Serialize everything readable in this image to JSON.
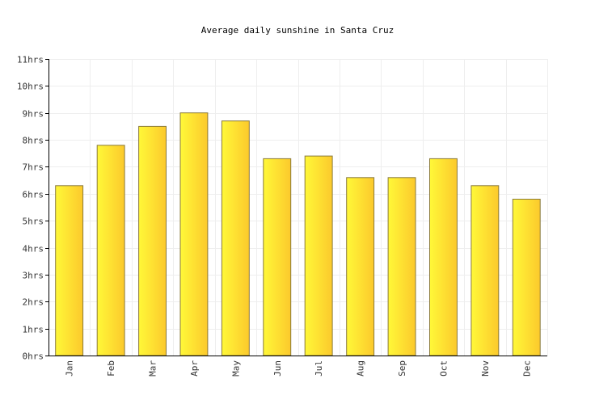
{
  "chart_data": {
    "type": "bar",
    "title": "Average daily sunshine in Santa Cruz",
    "xlabel": "",
    "ylabel": "",
    "categories": [
      "Jan",
      "Feb",
      "Mar",
      "Apr",
      "May",
      "Jun",
      "Jul",
      "Aug",
      "Sep",
      "Oct",
      "Nov",
      "Dec"
    ],
    "values": [
      6.3,
      7.8,
      8.5,
      9.0,
      8.7,
      7.3,
      7.4,
      6.6,
      6.6,
      7.3,
      6.3,
      5.8
    ],
    "ylim": [
      0,
      11
    ],
    "yticks": [
      "0hrs",
      "1hrs",
      "2hrs",
      "3hrs",
      "4hrs",
      "5hrs",
      "6hrs",
      "7hrs",
      "8hrs",
      "9hrs",
      "10hrs",
      "11hrs"
    ],
    "grid": true,
    "legend": "none",
    "colors": {
      "bar_light": "#fff838",
      "bar_dark": "#fcc92c",
      "bar_stroke": "#8a7a3a",
      "grid": "#eeeeee",
      "axis": "#000000"
    }
  }
}
